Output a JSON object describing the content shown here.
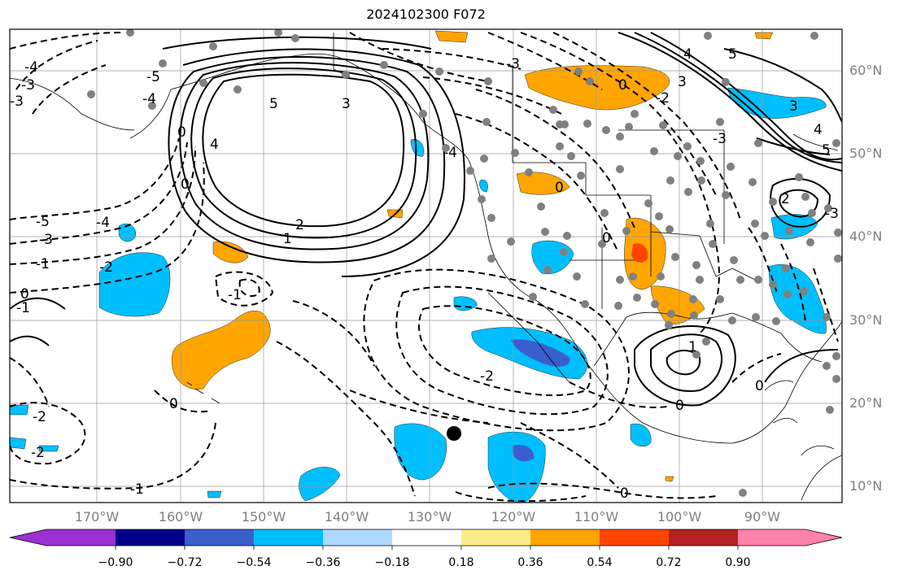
{
  "title": "2024102300 F072",
  "lat_labels": [
    "60°N",
    "50°N",
    "40°N",
    "30°N",
    "20°N",
    "10°N"
  ],
  "lon_labels": [
    "170°W",
    "160°W",
    "150°W",
    "140°W",
    "130°W",
    "120°W",
    "110°W",
    "100°W",
    "90°W"
  ],
  "colorbar": {
    "ticks": [
      "−0.90",
      "−0.72",
      "−0.54",
      "−0.36",
      "−0.18",
      "0.18",
      "0.36",
      "0.54",
      "0.72",
      "0.90"
    ],
    "colors": [
      "#9b30d0",
      "#00008b",
      "#3a5fcd",
      "#00bfff",
      "#add8ff",
      "#ffffff",
      "#ffec8b",
      "#ffa500",
      "#ff4500",
      "#b22222",
      "#ff82ab"
    ]
  },
  "contour_labels": [
    "3",
    "4",
    "5",
    "2",
    "1",
    "0",
    "-1",
    "-2",
    "-3",
    "-4",
    "-5"
  ],
  "colors": {
    "positive_fill": "#ffa500",
    "negative_fill": "#00bfff",
    "strong_neg": "#3a5fcd",
    "strong_pos": "#ff4500"
  }
}
